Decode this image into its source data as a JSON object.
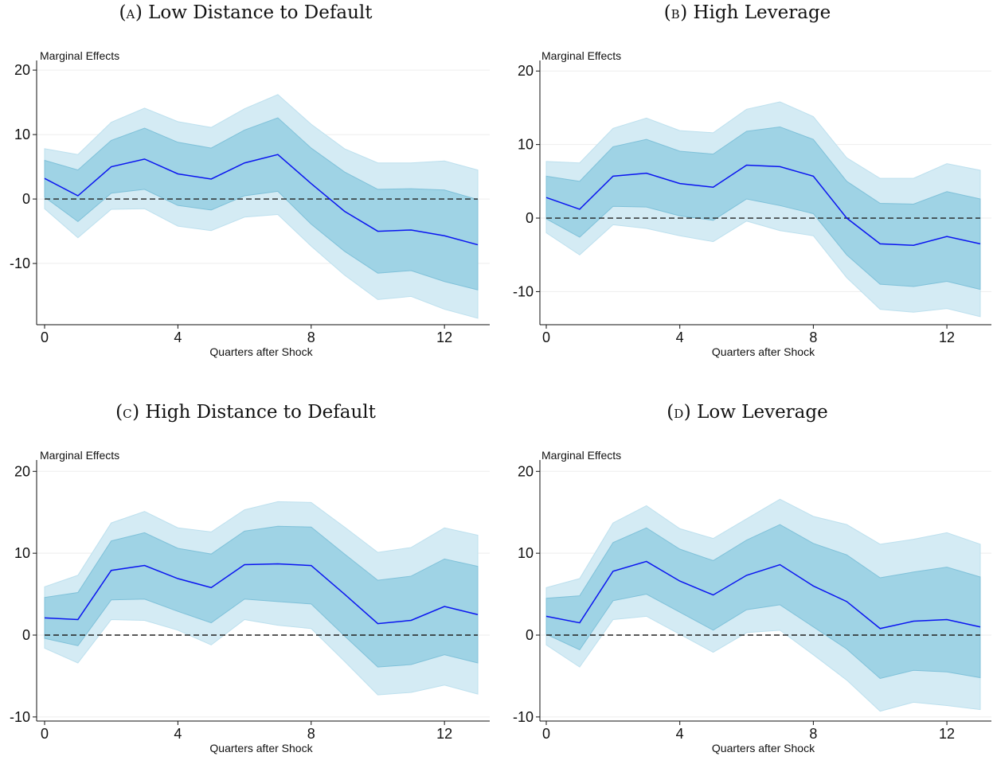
{
  "chart_data": [
    {
      "type": "line",
      "panel_letter": "A",
      "title": "Low Distance to Default",
      "ylabel": "Marginal Effects",
      "xlabel": "Quarters after Shock",
      "x": [
        0,
        1,
        2,
        3,
        4,
        5,
        6,
        7,
        8,
        9,
        10,
        11,
        12,
        13
      ],
      "xticks": [
        0,
        4,
        8,
        12
      ],
      "yticks": [
        20,
        10,
        0,
        -10
      ],
      "ylim": [
        -19.5,
        21
      ],
      "grid": true,
      "reference_line": 0,
      "series": [
        {
          "values": [
            3.2,
            0.5,
            5.0,
            6.2,
            3.9,
            3.1,
            5.6,
            6.9,
            2.4,
            -1.9,
            -5.0,
            -4.8,
            -5.7,
            -7.1
          ]
        }
      ],
      "bands": [
        {
          "level": "outer",
          "lower": [
            -1.5,
            -6.0,
            -1.6,
            -1.5,
            -4.2,
            -4.9,
            -2.8,
            -2.4,
            -7.3,
            -11.8,
            -15.6,
            -15.1,
            -17.1,
            -18.5
          ],
          "upper": [
            7.8,
            6.9,
            11.9,
            14.1,
            12.0,
            11.1,
            14.0,
            16.2,
            11.6,
            7.8,
            5.6,
            5.6,
            5.9,
            4.5
          ]
        },
        {
          "level": "inner",
          "lower": [
            0.3,
            -3.5,
            0.9,
            1.5,
            -1.0,
            -1.7,
            0.5,
            1.2,
            -3.9,
            -8.1,
            -11.5,
            -11.1,
            -12.8,
            -14.1
          ],
          "upper": [
            6.0,
            4.5,
            9.1,
            11.0,
            8.8,
            7.9,
            10.7,
            12.6,
            7.9,
            4.2,
            1.5,
            1.6,
            1.4,
            -0.1
          ]
        }
      ]
    },
    {
      "type": "line",
      "panel_letter": "B",
      "title": "High Leverage",
      "ylabel": "Marginal Effects",
      "xlabel": "Quarters after Shock",
      "x": [
        0,
        1,
        2,
        3,
        4,
        5,
        6,
        7,
        8,
        9,
        10,
        11,
        12,
        13
      ],
      "xticks": [
        0,
        4,
        8,
        12
      ],
      "yticks": [
        20,
        10,
        0,
        -10
      ],
      "ylim": [
        -14.5,
        21
      ],
      "grid": true,
      "reference_line": 0,
      "series": [
        {
          "values": [
            2.8,
            1.2,
            5.7,
            6.1,
            4.7,
            4.2,
            7.2,
            7.0,
            5.7,
            0.0,
            -3.5,
            -3.7,
            -2.5,
            -3.5
          ]
        }
      ],
      "bands": [
        {
          "level": "outer",
          "lower": [
            -2.0,
            -5.0,
            -0.9,
            -1.4,
            -2.4,
            -3.2,
            -0.4,
            -1.7,
            -2.4,
            -8.1,
            -12.4,
            -12.8,
            -12.3,
            -13.4
          ],
          "upper": [
            7.7,
            7.5,
            12.2,
            13.6,
            11.9,
            11.6,
            14.8,
            15.8,
            13.8,
            8.2,
            5.4,
            5.4,
            7.4,
            6.5
          ]
        },
        {
          "level": "inner",
          "lower": [
            -0.1,
            -2.6,
            1.6,
            1.5,
            0.3,
            -0.3,
            2.6,
            1.7,
            0.6,
            -5.0,
            -9.0,
            -9.3,
            -8.6,
            -9.7
          ],
          "upper": [
            5.7,
            5.0,
            9.7,
            10.7,
            9.1,
            8.7,
            11.8,
            12.4,
            10.7,
            5.0,
            2.0,
            1.9,
            3.6,
            2.6
          ]
        }
      ]
    },
    {
      "type": "line",
      "panel_letter": "C",
      "title": "High Distance to Default",
      "ylabel": "Marginal Effects",
      "xlabel": "Quarters after Shock",
      "x": [
        0,
        1,
        2,
        3,
        4,
        5,
        6,
        7,
        8,
        9,
        10,
        11,
        12,
        13
      ],
      "xticks": [
        0,
        4,
        8,
        12
      ],
      "yticks": [
        20,
        10,
        0,
        -10
      ],
      "ylim": [
        -10.5,
        21
      ],
      "grid": true,
      "reference_line": 0,
      "series": [
        {
          "values": [
            2.1,
            1.9,
            7.9,
            8.5,
            6.9,
            5.8,
            8.6,
            8.7,
            8.5,
            5.0,
            1.4,
            1.8,
            3.5,
            2.5
          ]
        }
      ],
      "bands": [
        {
          "level": "outer",
          "lower": [
            -1.6,
            -3.4,
            1.9,
            1.8,
            0.6,
            -1.2,
            1.9,
            1.2,
            0.8,
            -3.2,
            -7.3,
            -7.0,
            -6.1,
            -7.2
          ],
          "upper": [
            5.9,
            7.3,
            13.7,
            15.1,
            13.1,
            12.6,
            15.3,
            16.3,
            16.2,
            13.2,
            10.1,
            10.7,
            13.1,
            12.2
          ]
        },
        {
          "level": "inner",
          "lower": [
            -0.4,
            -1.3,
            4.3,
            4.4,
            2.9,
            1.5,
            4.4,
            4.1,
            3.8,
            -0.1,
            -3.9,
            -3.6,
            -2.4,
            -3.4
          ],
          "upper": [
            4.6,
            5.2,
            11.5,
            12.5,
            10.6,
            9.9,
            12.7,
            13.3,
            13.2,
            9.9,
            6.7,
            7.2,
            9.3,
            8.4
          ]
        }
      ]
    },
    {
      "type": "line",
      "panel_letter": "D",
      "title": "Low Leverage",
      "ylabel": "Marginal Effects",
      "xlabel": "Quarters after Shock",
      "x": [
        0,
        1,
        2,
        3,
        4,
        5,
        6,
        7,
        8,
        9,
        10,
        11,
        12,
        13
      ],
      "xticks": [
        0,
        4,
        8,
        12
      ],
      "yticks": [
        20,
        10,
        0,
        -10
      ],
      "ylim": [
        -10.5,
        21
      ],
      "grid": true,
      "reference_line": 0,
      "series": [
        {
          "values": [
            2.3,
            1.5,
            7.8,
            9.0,
            6.6,
            4.9,
            7.3,
            8.6,
            6.0,
            4.1,
            0.8,
            1.7,
            1.9,
            1.0
          ]
        }
      ],
      "bands": [
        {
          "level": "outer",
          "lower": [
            -1.2,
            -3.9,
            1.9,
            2.3,
            0.1,
            -2.1,
            0.3,
            0.6,
            -2.4,
            -5.5,
            -9.3,
            -8.2,
            -8.6,
            -9.1
          ],
          "upper": [
            5.8,
            6.9,
            13.7,
            15.8,
            13.0,
            11.8,
            14.2,
            16.6,
            14.5,
            13.5,
            11.1,
            11.7,
            12.5,
            11.1
          ]
        },
        {
          "level": "inner",
          "lower": [
            0.1,
            -1.8,
            4.2,
            5.0,
            2.8,
            0.6,
            3.1,
            3.7,
            1.0,
            -1.7,
            -5.3,
            -4.3,
            -4.5,
            -5.2
          ],
          "upper": [
            4.5,
            4.8,
            11.3,
            13.1,
            10.5,
            9.1,
            11.6,
            13.5,
            11.2,
            9.8,
            7.0,
            7.7,
            8.3,
            7.1
          ]
        }
      ]
    }
  ]
}
